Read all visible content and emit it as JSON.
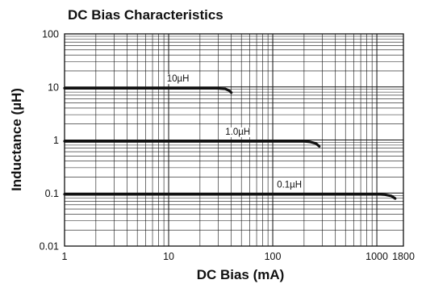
{
  "chart_data": {
    "type": "line",
    "title": "DC Bias Characteristics",
    "xlabel": "DC Bias (mA)",
    "ylabel": "Inductance (µH)",
    "x_scale": "log",
    "y_scale": "log",
    "xlim": [
      1,
      1800
    ],
    "ylim": [
      0.01,
      100
    ],
    "x_ticks": [
      "1",
      "10",
      "100",
      "1000",
      "1800"
    ],
    "y_ticks": [
      "100",
      "10",
      "1",
      "0.1",
      "0.01"
    ],
    "grid": true,
    "series": [
      {
        "name": "10µH",
        "x": [
          1,
          10,
          25,
          30,
          35,
          38,
          40
        ],
        "y": [
          9.5,
          9.5,
          9.5,
          9.4,
          9.2,
          8.6,
          7.8
        ]
      },
      {
        "name": "1.0µH",
        "x": [
          1,
          10,
          100,
          200,
          230,
          260,
          280
        ],
        "y": [
          0.95,
          0.95,
          0.95,
          0.95,
          0.92,
          0.86,
          0.76
        ]
      },
      {
        "name": "0.1µH",
        "x": [
          1,
          10,
          100,
          1000,
          1200,
          1380,
          1500
        ],
        "y": [
          0.095,
          0.095,
          0.095,
          0.095,
          0.093,
          0.088,
          0.079
        ]
      }
    ]
  }
}
